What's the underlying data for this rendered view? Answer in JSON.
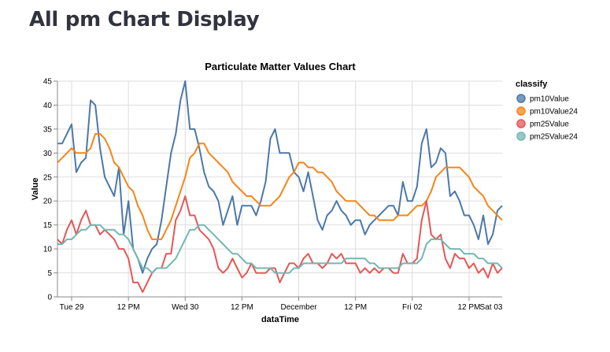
{
  "page": {
    "title": "All pm Chart Display"
  },
  "chart_data": {
    "type": "line",
    "title": "Particulate Matter Values Chart",
    "xlabel": "dataTime",
    "ylabel": "Value",
    "ylim": [
      0,
      45
    ],
    "yticks": [
      0,
      5,
      10,
      15,
      20,
      25,
      30,
      35,
      40,
      45
    ],
    "xlim": [
      0,
      94
    ],
    "xticks": [
      {
        "x": 3,
        "label": "Tue 29"
      },
      {
        "x": 15,
        "label": "12 PM"
      },
      {
        "x": 27,
        "label": "Wed 30"
      },
      {
        "x": 39,
        "label": "12 PM"
      },
      {
        "x": 51,
        "label": "December"
      },
      {
        "x": 63,
        "label": "12 PM"
      },
      {
        "x": 75,
        "label": "Fri 02"
      },
      {
        "x": 87,
        "label": "12 PM"
      },
      {
        "x": 99,
        "label": "Sat 03"
      }
    ],
    "grid": true,
    "legend": {
      "title": "classify",
      "position": "right"
    },
    "series": [
      {
        "name": "pm10Value",
        "color": "#4c78a8",
        "values": [
          32,
          32,
          34,
          36,
          26,
          28,
          29,
          41,
          40,
          31,
          25,
          23,
          21,
          27,
          13,
          20,
          10,
          8,
          5,
          8,
          10,
          11,
          16,
          23,
          30,
          34,
          41,
          45,
          35,
          35,
          31,
          26,
          23,
          22,
          20,
          15,
          18,
          21,
          15,
          19,
          19,
          19,
          17,
          20,
          24,
          33,
          35,
          30,
          30,
          30,
          26,
          25,
          22,
          26,
          21,
          16,
          14,
          17,
          18,
          20,
          18,
          17,
          15,
          16,
          16,
          13,
          15,
          16,
          17,
          18,
          19,
          19,
          17,
          24,
          20,
          20,
          23,
          32,
          35,
          27,
          28,
          31,
          30,
          21,
          22,
          20,
          17,
          17,
          15,
          12,
          17,
          11,
          13,
          18,
          19,
          18,
          17,
          19,
          19,
          23
        ]
      },
      {
        "name": "pm10Value24",
        "color": "#f58518",
        "values": [
          28,
          29,
          30,
          31,
          30,
          30,
          30,
          31,
          34,
          34,
          33,
          31,
          28,
          27,
          25,
          23,
          22,
          19,
          17,
          14,
          12,
          12,
          12,
          14,
          16,
          19,
          22,
          25,
          29,
          30,
          32,
          32,
          30,
          29,
          28,
          27,
          26,
          24,
          23,
          22,
          21,
          21,
          20,
          19,
          19,
          19,
          20,
          21,
          23,
          25,
          26,
          28,
          28,
          27,
          27,
          26,
          26,
          25,
          24,
          22,
          21,
          20,
          20,
          20,
          19,
          18,
          17,
          17,
          16,
          16,
          16,
          16,
          17,
          17,
          17,
          18,
          19,
          19,
          20,
          22,
          25,
          26,
          27,
          27,
          27,
          27,
          26,
          25,
          23,
          22,
          21,
          19,
          18,
          17,
          16,
          16,
          17,
          17,
          17,
          18
        ]
      },
      {
        "name": "pm25Value",
        "color": "#e45756",
        "values": [
          12,
          11,
          14,
          16,
          13,
          16,
          18,
          15,
          15,
          13,
          14,
          13,
          12,
          10,
          10,
          8,
          3,
          3,
          1,
          3,
          5,
          6,
          6,
          9,
          9,
          16,
          18,
          21,
          17,
          17,
          14,
          13,
          12,
          10,
          6,
          5,
          6,
          8,
          6,
          4,
          5,
          7,
          5,
          5,
          5,
          6,
          6,
          3,
          5,
          7,
          7,
          6,
          8,
          9,
          7,
          7,
          6,
          7,
          9,
          8,
          9,
          7,
          7,
          7,
          5,
          6,
          5,
          6,
          5,
          6,
          6,
          5,
          5,
          9,
          7,
          7,
          8,
          16,
          20,
          13,
          12,
          13,
          8,
          6,
          9,
          8,
          8,
          6,
          7,
          5,
          6,
          4,
          7,
          5,
          6,
          5,
          4,
          8,
          7,
          7
        ]
      },
      {
        "name": "pm25Value24",
        "color": "#72b7b2",
        "values": [
          11,
          11,
          12,
          12,
          13,
          14,
          14,
          15,
          15,
          15,
          14,
          14,
          14,
          13,
          13,
          12,
          10,
          8,
          6,
          6,
          5,
          6,
          6,
          6,
          7,
          8,
          10,
          12,
          14,
          14,
          15,
          15,
          14,
          13,
          12,
          11,
          10,
          9,
          9,
          8,
          7,
          7,
          6,
          6,
          6,
          6,
          5,
          5,
          5,
          5,
          6,
          6,
          7,
          7,
          7,
          7,
          7,
          7,
          7,
          7,
          7,
          8,
          8,
          8,
          8,
          8,
          7,
          7,
          6,
          6,
          6,
          6,
          6,
          7,
          7,
          7,
          7,
          8,
          11,
          12,
          12,
          12,
          11,
          10,
          10,
          10,
          9,
          9,
          9,
          8,
          8,
          7,
          7,
          7,
          6,
          6,
          6,
          6,
          6,
          6
        ]
      }
    ]
  }
}
